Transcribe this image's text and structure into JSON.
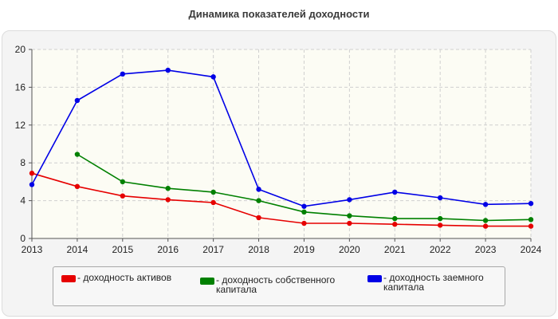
{
  "chart_data": {
    "type": "line",
    "title": "Динамика показателей доходности",
    "x": [
      "2013",
      "2014",
      "2015",
      "2016",
      "2017",
      "2018",
      "2019",
      "2020",
      "2021",
      "2022",
      "2023",
      "2024"
    ],
    "xlabel": "",
    "ylabel": "",
    "ylim": [
      0,
      20
    ],
    "yticks": [
      "0",
      "4",
      "8",
      "12",
      "16",
      "20"
    ],
    "grid": true,
    "legend_position": "bottom",
    "series": [
      {
        "name": "- доходность активов",
        "color": "#e60000",
        "values": [
          6.9,
          5.5,
          4.5,
          4.1,
          3.8,
          2.2,
          1.6,
          1.6,
          1.5,
          1.4,
          1.3,
          1.3
        ]
      },
      {
        "name": "- доходность собственного капитала",
        "color": "#008000",
        "values": [
          null,
          8.9,
          6.0,
          5.3,
          4.9,
          4.0,
          2.8,
          2.4,
          2.1,
          2.1,
          1.9,
          2.0
        ]
      },
      {
        "name": "- доходность заемного капитала",
        "color": "#0000e6",
        "values": [
          5.7,
          14.6,
          17.4,
          17.8,
          17.1,
          5.2,
          3.4,
          4.1,
          4.9,
          4.3,
          3.6,
          3.7
        ]
      }
    ]
  }
}
